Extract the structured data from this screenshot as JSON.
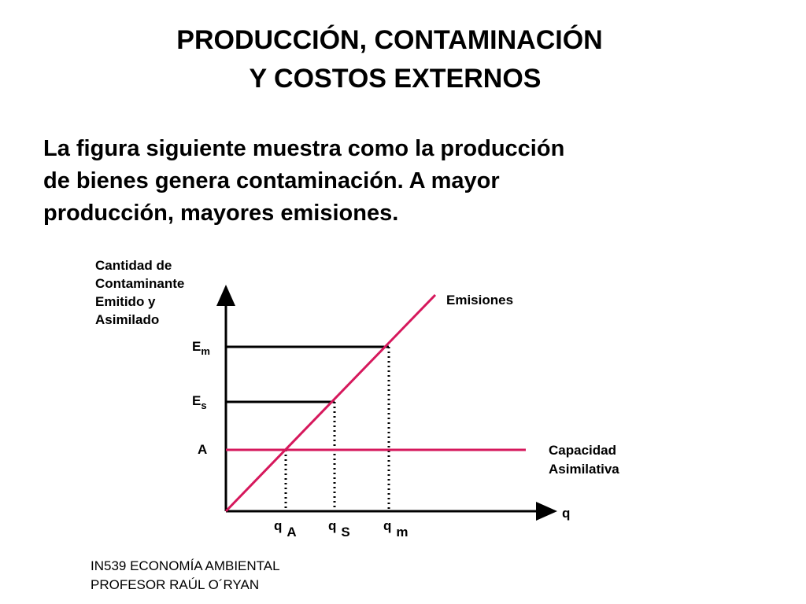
{
  "title": {
    "lines": [
      "PRODUCCIÓN, CONTAMINACIÓN",
      "Y COSTOS EXTERNOS"
    ]
  },
  "body": {
    "lines": [
      "La figura siguiente muestra como la producción",
      "de bienes genera contaminación. A mayor",
      "producción, mayores emisiones."
    ]
  },
  "diagram": {
    "y_axis_label": [
      "Cantidad de",
      "Contaminante",
      "Emitido y",
      "Asimilado"
    ],
    "x_axis_label": "q",
    "emissions_label": "Emisiones",
    "capacity_label": [
      "Capacidad",
      "Asimilativa"
    ],
    "y_levels": [
      {
        "base": "E",
        "sub": "m"
      },
      {
        "base": "E",
        "sub": "s"
      },
      {
        "base": "A"
      }
    ],
    "x_points": [
      {
        "base": "q",
        "sub": "A"
      },
      {
        "base": "q",
        "sub": "S"
      },
      {
        "base": "q",
        "sub": "m"
      }
    ]
  },
  "footer": {
    "lines": [
      "IN539 ECONOMÍA AMBIENTAL",
      "PROFESOR RAÚL O´RYAN"
    ]
  }
}
